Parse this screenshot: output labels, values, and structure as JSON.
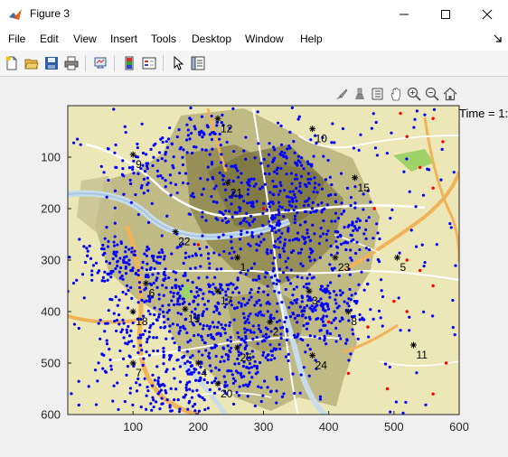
{
  "window": {
    "title": "Figure 3"
  },
  "menu": [
    "File",
    "Edit",
    "View",
    "Insert",
    "Tools",
    "Desktop",
    "Window",
    "Help"
  ],
  "toolbar_icons": [
    "new-figure-icon",
    "open-file-icon",
    "save-icon",
    "print-icon",
    "link-plot-icon",
    "insert-colorbar-icon",
    "insert-legend-icon",
    "pointer-icon",
    "property-inspector-icon"
  ],
  "axes_toolbar_icons": [
    "brush-icon",
    "data-tips-icon",
    "restore-view-icon",
    "pan-icon",
    "zoom-in-icon",
    "zoom-out-icon",
    "home-icon"
  ],
  "annotation": "Time = 1:",
  "chart_data": {
    "type": "scatter",
    "xlim": [
      0,
      600
    ],
    "ylim": [
      600,
      0
    ],
    "x_ticks": [
      "100",
      "200",
      "300",
      "400",
      "500",
      "600"
    ],
    "y_ticks": [
      "100",
      "200",
      "300",
      "400",
      "500",
      "600"
    ],
    "background": "street map",
    "series": [
      {
        "color": "#0000ff",
        "marker": "dot",
        "clusters": [
          [
            300,
            300,
            60
          ],
          [
            320,
            240,
            40
          ],
          [
            370,
            180,
            30
          ],
          [
            170,
            380,
            50
          ],
          [
            240,
            420,
            45
          ],
          [
            300,
            430,
            40
          ],
          [
            380,
            380,
            35
          ],
          [
            130,
            330,
            40
          ],
          [
            110,
            120,
            30
          ],
          [
            200,
            60,
            25
          ],
          [
            340,
            100,
            30
          ],
          [
            430,
            250,
            30
          ],
          [
            420,
            400,
            35
          ],
          [
            200,
            500,
            35
          ],
          [
            150,
            560,
            30
          ],
          [
            280,
            520,
            35
          ],
          [
            70,
            300,
            30
          ],
          [
            90,
            460,
            30
          ],
          [
            250,
            170,
            35
          ]
        ]
      },
      {
        "color": "#ff0000",
        "marker": "dot",
        "points": [
          [
            510,
            15
          ],
          [
            520,
            60
          ],
          [
            560,
            25
          ],
          [
            540,
            120
          ],
          [
            575,
            70
          ],
          [
            470,
            200
          ],
          [
            520,
            300
          ],
          [
            540,
            320
          ],
          [
            560,
            350
          ],
          [
            520,
            400
          ],
          [
            500,
            380
          ],
          [
            460,
            430
          ],
          [
            430,
            520
          ],
          [
            490,
            550
          ],
          [
            580,
            500
          ],
          [
            560,
            560
          ],
          [
            400,
            420
          ],
          [
            560,
            160
          ],
          [
            300,
            200
          ],
          [
            200,
            270
          ]
        ]
      },
      {
        "color": "#000000",
        "marker": "asterisk",
        "labels": true,
        "points": [
          [
            230,
            25,
            "12"
          ],
          [
            375,
            45,
            "10"
          ],
          [
            100,
            95,
            "9"
          ],
          [
            245,
            150,
            "21"
          ],
          [
            440,
            140,
            "15"
          ],
          [
            165,
            245,
            "22"
          ],
          [
            260,
            295,
            "1"
          ],
          [
            410,
            295,
            "23"
          ],
          [
            505,
            295,
            "5"
          ],
          [
            120,
            345,
            "6"
          ],
          [
            230,
            360,
            "17"
          ],
          [
            370,
            360,
            "3"
          ],
          [
            180,
            395,
            "19"
          ],
          [
            100,
            400,
            "18"
          ],
          [
            430,
            400,
            "8"
          ],
          [
            310,
            420,
            "2"
          ],
          [
            260,
            470,
            "25"
          ],
          [
            530,
            465,
            "11"
          ],
          [
            375,
            485,
            "24"
          ],
          [
            100,
            500,
            "7"
          ],
          [
            200,
            500,
            "4"
          ],
          [
            230,
            540,
            "20"
          ]
        ]
      }
    ]
  }
}
